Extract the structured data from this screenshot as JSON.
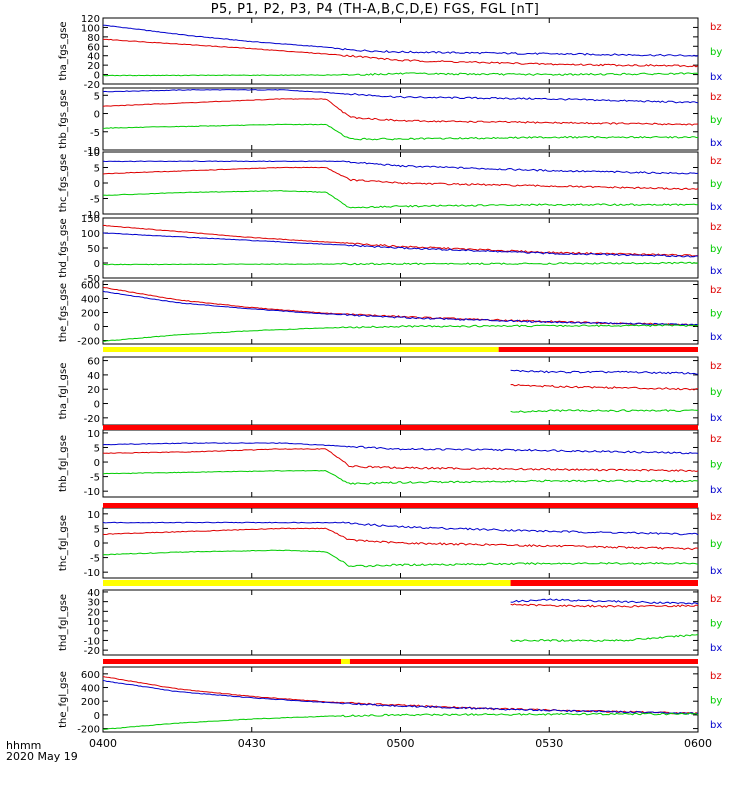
{
  "title": "P5, P1, P2, P3, P4 (TH-A,B,C,D,E) FGS, FGL [nT]",
  "footer": {
    "time_label": "hhmm",
    "date_label": "2020 May 19"
  },
  "colors": {
    "bz": "#dd0000",
    "by": "#00cc00",
    "bx": "#0000cc",
    "flag_yellow": "#ffff00",
    "flag_red": "#ff0000",
    "flag_black": "#000000"
  },
  "chart_data": {
    "type": "line",
    "x_ticks": [
      "0400",
      "0430",
      "0500",
      "0530",
      "0600"
    ],
    "legend": [
      "bz",
      "by",
      "bx"
    ],
    "panels": [
      {
        "ylabel": "tha_fgs_gse",
        "yticks": [
          "120",
          "100",
          "80",
          "60",
          "40",
          "20",
          "0",
          "-20"
        ],
        "ylim": [
          -20,
          120
        ],
        "series": [
          {
            "name": "bx",
            "x": [
              4.0,
              4.3,
              4.5,
              4.75,
              4.83,
              5.0,
              5.5,
              6.0
            ],
            "values": [
              105,
              82,
              70,
              58,
              52,
              48,
              44,
              40
            ]
          },
          {
            "name": "bz",
            "x": [
              4.0,
              4.5,
              4.83,
              5.0,
              5.5,
              6.0
            ],
            "values": [
              75,
              55,
              40,
              30,
              22,
              18
            ]
          },
          {
            "name": "by",
            "x": [
              4.0,
              4.8,
              5.0,
              5.5,
              6.0
            ],
            "values": [
              -2,
              -1,
              2,
              0,
              2
            ]
          }
        ]
      },
      {
        "ylabel": "thb_fgs_gse",
        "yticks": [
          "5",
          "0",
          "-5",
          "-10"
        ],
        "ylim": [
          -10,
          7
        ],
        "series": [
          {
            "name": "bx",
            "x": [
              4.0,
              4.3,
              4.6,
              4.8,
              5.0,
              5.5,
              6.0
            ],
            "values": [
              6,
              6.5,
              6.5,
              5.5,
              4.5,
              4,
              3
            ]
          },
          {
            "name": "bz",
            "x": [
              4.0,
              4.3,
              4.6,
              4.75,
              4.83,
              5.0,
              5.5,
              6.0
            ],
            "values": [
              2,
              3,
              4,
              4,
              -1,
              -2,
              -2.5,
              -3
            ]
          },
          {
            "name": "by",
            "x": [
              4.0,
              4.3,
              4.6,
              4.75,
              4.83,
              5.0,
              5.5,
              6.0
            ],
            "values": [
              -4,
              -3.5,
              -3,
              -3,
              -7,
              -7,
              -6.5,
              -6.5
            ]
          }
        ]
      },
      {
        "ylabel": "thc_fgs_gse",
        "yticks": [
          "10",
          "5",
          "0",
          "-5",
          "-10"
        ],
        "ylim": [
          -10,
          10
        ],
        "series": [
          {
            "name": "bx",
            "x": [
              4.0,
              4.3,
              4.6,
              4.8,
              5.0,
              5.5,
              6.0
            ],
            "values": [
              7,
              7,
              7,
              7,
              5.5,
              4,
              3
            ]
          },
          {
            "name": "bz",
            "x": [
              4.0,
              4.3,
              4.6,
              4.75,
              4.83,
              5.0,
              5.5,
              6.0
            ],
            "values": [
              3,
              4,
              5,
              5,
              1,
              0,
              -1,
              -2
            ]
          },
          {
            "name": "by",
            "x": [
              4.0,
              4.3,
              4.6,
              4.75,
              4.83,
              5.0,
              5.5,
              6.0
            ],
            "values": [
              -4,
              -3,
              -2.5,
              -3,
              -8,
              -7.5,
              -7,
              -7
            ]
          }
        ]
      },
      {
        "ylabel": "thd_fgs_gse",
        "yticks": [
          "150",
          "100",
          "50",
          "0",
          "-50"
        ],
        "ylim": [
          -50,
          150
        ],
        "series": [
          {
            "name": "bz",
            "x": [
              4.0,
              4.5,
              5.0,
              5.5,
              6.0
            ],
            "values": [
              125,
              85,
              55,
              35,
              25
            ]
          },
          {
            "name": "bx",
            "x": [
              4.0,
              4.5,
              5.0,
              5.5,
              6.0
            ],
            "values": [
              100,
              75,
              50,
              32,
              22
            ]
          },
          {
            "name": "by",
            "x": [
              4.0,
              4.5,
              5.0,
              5.5,
              6.0
            ],
            "values": [
              -5,
              -4,
              -3,
              -2,
              0
            ]
          }
        ]
      },
      {
        "ylabel": "the_fgs_gse",
        "yticks": [
          "600",
          "400",
          "200",
          "0",
          "-200"
        ],
        "ylim": [
          -250,
          650
        ],
        "series": [
          {
            "name": "bz",
            "x": [
              4.0,
              4.25,
              4.5,
              4.75,
              5.0,
              5.25,
              5.5,
              6.0
            ],
            "values": [
              560,
              380,
              270,
              190,
              140,
              100,
              70,
              20
            ]
          },
          {
            "name": "bx",
            "x": [
              4.0,
              4.25,
              4.5,
              4.75,
              5.0,
              5.25,
              5.5,
              6.0
            ],
            "values": [
              500,
              340,
              250,
              180,
              130,
              95,
              65,
              20
            ]
          },
          {
            "name": "by",
            "x": [
              4.0,
              4.25,
              4.5,
              4.75,
              5.0,
              5.5,
              6.0
            ],
            "values": [
              -210,
              -120,
              -60,
              -20,
              0,
              10,
              15
            ]
          }
        ]
      },
      {
        "ylabel": "tha_fgl_gse",
        "yticks": [
          "60",
          "40",
          "20",
          "0",
          "-20"
        ],
        "ylim": [
          -30,
          65
        ],
        "series": [
          {
            "name": "bx",
            "x": [
              5.37,
              5.5,
              5.75,
              6.0
            ],
            "values": [
              46,
              44,
              44,
              42
            ]
          },
          {
            "name": "bz",
            "x": [
              5.37,
              5.5,
              5.75,
              6.0
            ],
            "values": [
              26,
              24,
              22,
              20
            ]
          },
          {
            "name": "by",
            "x": [
              5.37,
              5.5,
              5.75,
              6.0
            ],
            "values": [
              -12,
              -10,
              -10,
              -10
            ]
          }
        ]
      },
      {
        "ylabel": "thb_fgl_gse",
        "yticks": [
          "10",
          "5",
          "0",
          "-5",
          "-10"
        ],
        "ylim": [
          -12,
          11
        ],
        "series": [
          {
            "name": "bx",
            "x": [
              4.0,
              4.3,
              4.6,
              4.8,
              5.0,
              5.5,
              6.0
            ],
            "values": [
              6,
              6.5,
              6.5,
              5.5,
              4.5,
              4,
              3
            ]
          },
          {
            "name": "bz",
            "x": [
              4.0,
              4.3,
              4.6,
              4.75,
              4.83,
              5.0,
              5.5,
              6.0
            ],
            "values": [
              3,
              3.5,
              4.5,
              4.5,
              -1.5,
              -2,
              -2.5,
              -3
            ]
          },
          {
            "name": "by",
            "x": [
              4.0,
              4.3,
              4.6,
              4.75,
              4.83,
              5.0,
              5.5,
              6.0
            ],
            "values": [
              -4,
              -3.5,
              -3,
              -3,
              -7.5,
              -7,
              -6.5,
              -6.5
            ]
          }
        ]
      },
      {
        "ylabel": "thc_fgl_gse",
        "yticks": [
          "10",
          "5",
          "0",
          "-5",
          "-10"
        ],
        "ylim": [
          -12,
          12
        ],
        "series": [
          {
            "name": "bx",
            "x": [
              4.0,
              4.3,
              4.6,
              4.8,
              5.0,
              5.5,
              6.0
            ],
            "values": [
              7,
              7,
              7,
              7,
              5.5,
              4,
              3
            ]
          },
          {
            "name": "bz",
            "x": [
              4.0,
              4.3,
              4.6,
              4.75,
              4.83,
              5.0,
              5.5,
              6.0
            ],
            "values": [
              3,
              4,
              5,
              5,
              1,
              0,
              -1,
              -2
            ]
          },
          {
            "name": "by",
            "x": [
              4.0,
              4.3,
              4.6,
              4.75,
              4.83,
              5.0,
              5.5,
              6.0
            ],
            "values": [
              -4,
              -3,
              -2.5,
              -3,
              -8,
              -7.5,
              -7,
              -7
            ]
          }
        ]
      },
      {
        "ylabel": "thd_fgl_gse",
        "yticks": [
          "40",
          "30",
          "20",
          "10",
          "0",
          "-10",
          "-20"
        ],
        "ylim": [
          -25,
          42
        ],
        "series": [
          {
            "name": "bx",
            "x": [
              5.37,
              5.5,
              5.75,
              6.0
            ],
            "values": [
              30,
              32,
              30,
              28
            ]
          },
          {
            "name": "bz",
            "x": [
              5.37,
              5.5,
              5.75,
              6.0
            ],
            "values": [
              27,
              26,
              25,
              26
            ]
          },
          {
            "name": "by",
            "x": [
              5.37,
              5.5,
              5.75,
              6.0
            ],
            "values": [
              -10,
              -10,
              -10,
              -4
            ]
          }
        ]
      },
      {
        "ylabel": "the_fgl_gse",
        "yticks": [
          "600",
          "400",
          "200",
          "0",
          "-200"
        ],
        "ylim": [
          -250,
          700
        ],
        "series": [
          {
            "name": "bz",
            "x": [
              4.0,
              4.25,
              4.5,
              4.75,
              5.0,
              5.25,
              5.5,
              6.0
            ],
            "values": [
              560,
              380,
              270,
              190,
              140,
              100,
              70,
              20
            ]
          },
          {
            "name": "bx",
            "x": [
              4.0,
              4.25,
              4.5,
              4.75,
              5.0,
              5.25,
              5.5,
              6.0
            ],
            "values": [
              500,
              340,
              250,
              180,
              130,
              95,
              65,
              20
            ]
          },
          {
            "name": "by",
            "x": [
              4.0,
              4.25,
              4.5,
              4.75,
              5.0,
              5.5,
              6.0
            ],
            "values": [
              -210,
              -120,
              -60,
              -20,
              0,
              10,
              15
            ]
          }
        ]
      }
    ],
    "flag_bars": [
      {
        "segments": [
          {
            "from": 4.0,
            "to": 5.33,
            "color": "yellow"
          },
          {
            "from": 5.33,
            "to": 6.0,
            "color": "red"
          }
        ]
      },
      {
        "segments": [
          {
            "from": 4.0,
            "to": 6.0,
            "color": "red"
          }
        ]
      },
      {
        "segments": [
          {
            "from": 4.0,
            "to": 6.0,
            "color": "red"
          }
        ]
      },
      {
        "segments": [
          {
            "from": 4.0,
            "to": 5.37,
            "color": "yellow"
          },
          {
            "from": 5.37,
            "to": 6.0,
            "color": "red"
          }
        ]
      },
      {
        "segments": [
          {
            "from": 4.0,
            "to": 4.8,
            "color": "red"
          },
          {
            "from": 4.8,
            "to": 4.83,
            "color": "yellow"
          },
          {
            "from": 4.83,
            "to": 6.0,
            "color": "red"
          }
        ]
      }
    ]
  }
}
